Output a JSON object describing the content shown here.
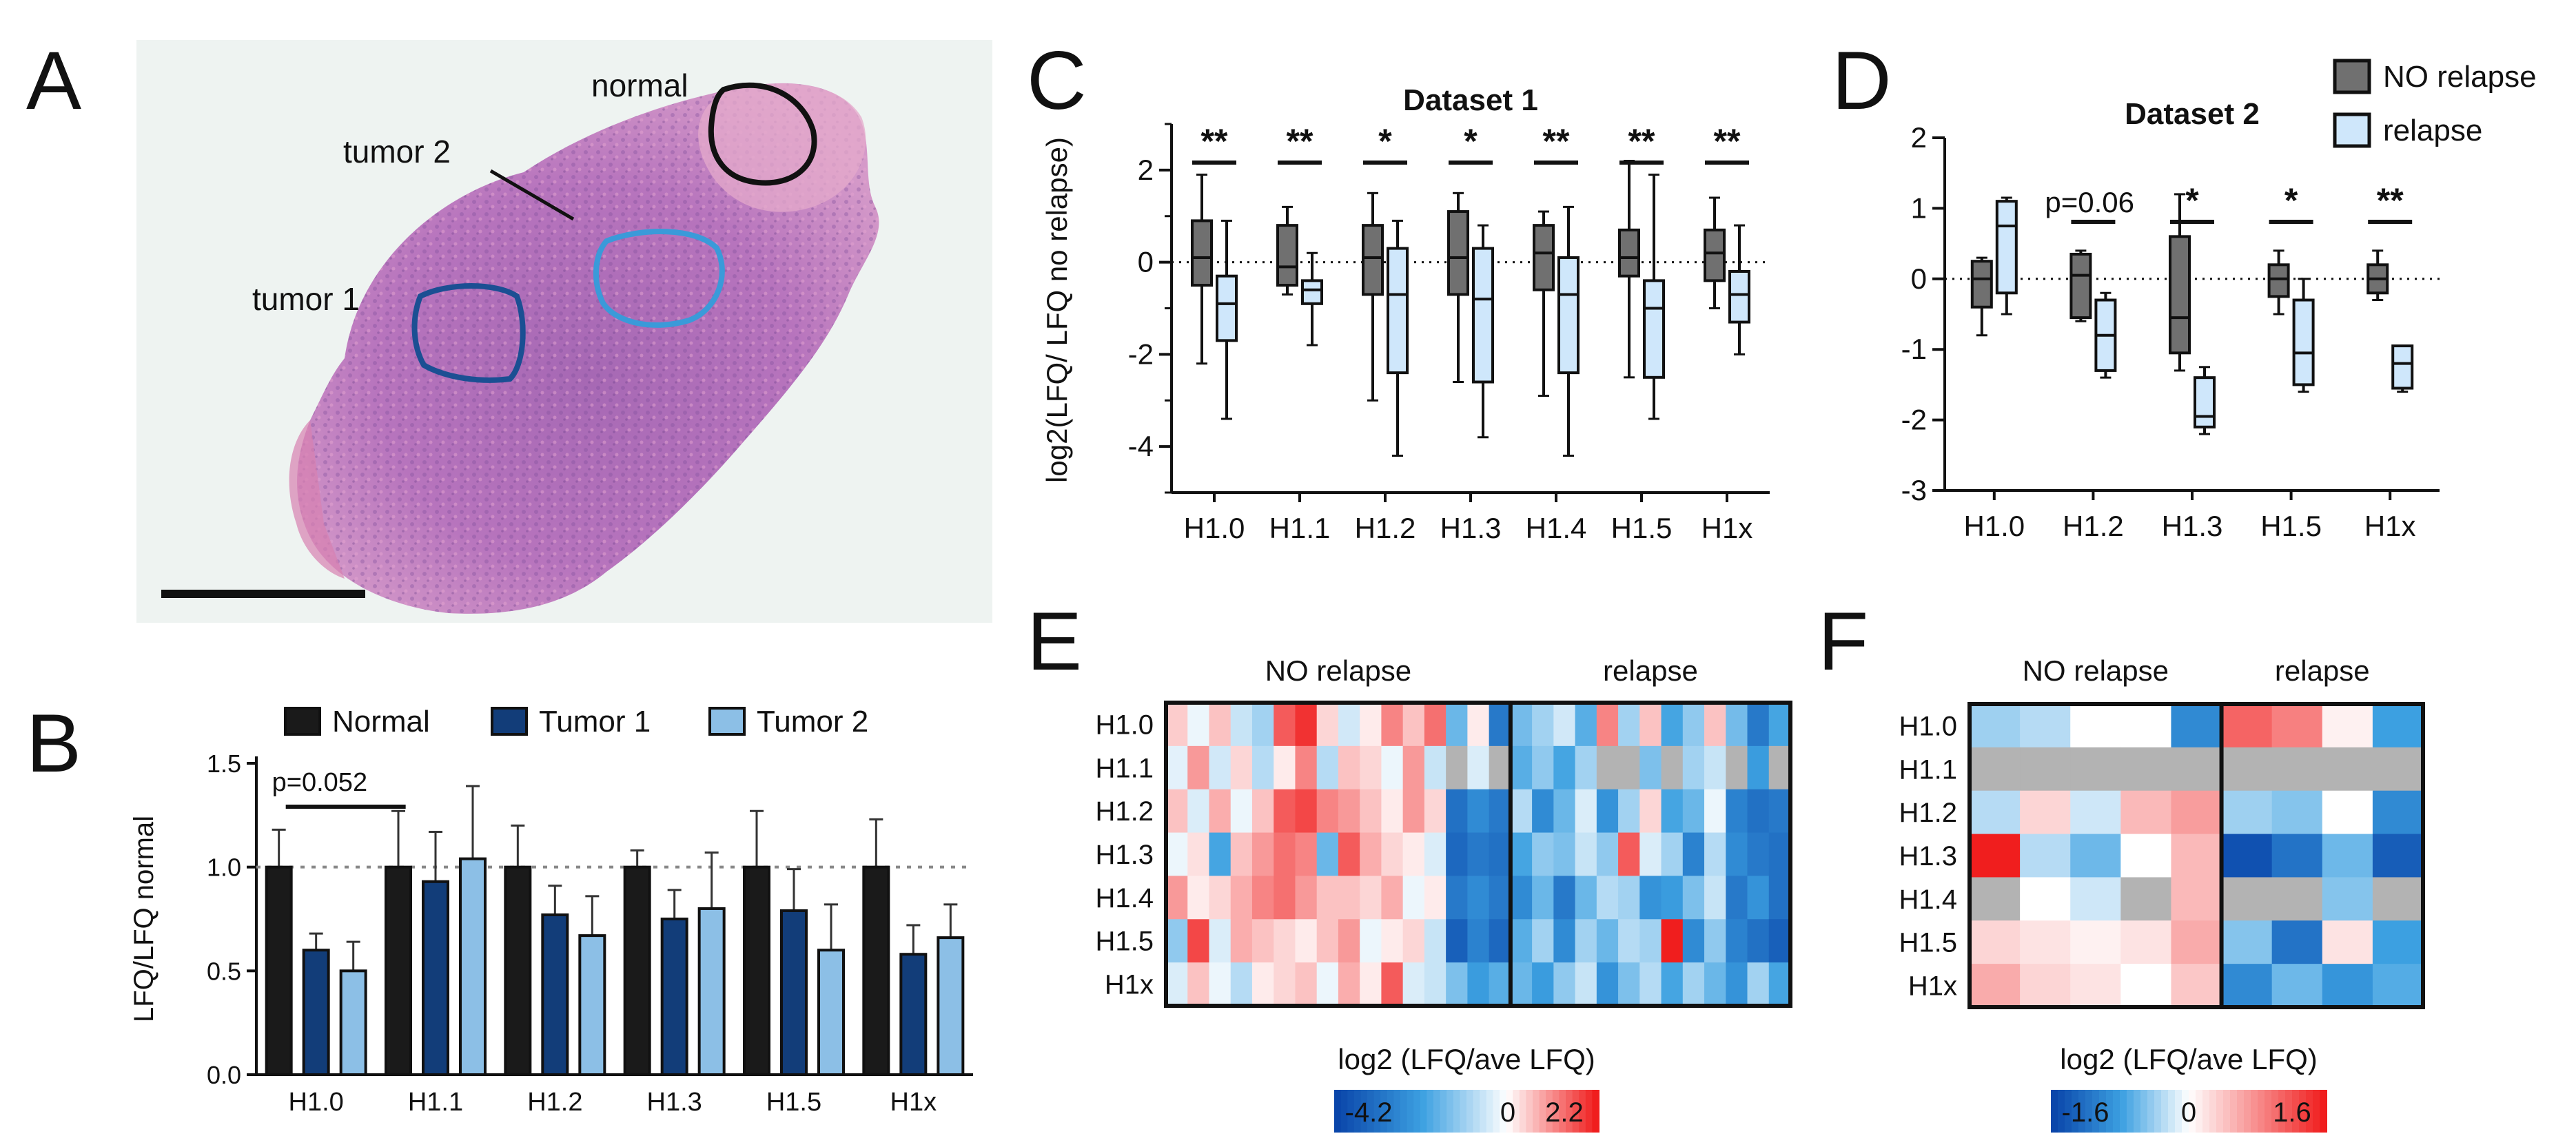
{
  "panel_labels": {
    "A": "A",
    "B": "B",
    "C": "C",
    "D": "D",
    "E": "E",
    "F": "F"
  },
  "histology": {
    "labels": {
      "normal": "normal",
      "tumor1": "tumor 1",
      "tumor2": "tumor 2"
    }
  },
  "colors": {
    "normal_bar": "#1a1a1a",
    "tumor1_bar": "#123d79",
    "tumor2_bar": "#8cbfe6",
    "no_relapse_box": "#707070",
    "relapse_box": "#cfe7fb",
    "tumor1_outline": "#1b4f93",
    "tumor2_outline": "#3a9ad9",
    "normal_outline": "#111111"
  },
  "chart_data": [
    {
      "id": "B",
      "type": "bar",
      "categories": [
        "H1.0",
        "H1.1",
        "H1.2",
        "H1.3",
        "H1.5",
        "H1x"
      ],
      "series": [
        {
          "name": "Normal",
          "values": [
            1.0,
            1.0,
            1.0,
            1.0,
            1.0,
            1.0
          ],
          "err": [
            0.18,
            0.27,
            0.2,
            0.08,
            0.27,
            0.23
          ]
        },
        {
          "name": "Tumor 1",
          "values": [
            0.6,
            0.93,
            0.77,
            0.75,
            0.79,
            0.58
          ],
          "err": [
            0.08,
            0.24,
            0.14,
            0.14,
            0.2,
            0.14
          ]
        },
        {
          "name": "Tumor 2",
          "values": [
            0.5,
            1.04,
            0.67,
            0.8,
            0.6,
            0.66
          ],
          "err": [
            0.14,
            0.35,
            0.19,
            0.27,
            0.22,
            0.16
          ]
        }
      ],
      "ylabel": "LFQ/LFQ normal",
      "ylim": [
        0,
        1.5
      ],
      "yticks": [
        "0.0",
        "0.5",
        "1.0",
        "1.5"
      ],
      "reference_line": 1.0,
      "annotation": "p=0.052",
      "legend": "top"
    },
    {
      "id": "C",
      "type": "box",
      "title": "Dataset 1",
      "categories": [
        "H1.0",
        "H1.1",
        "H1.2",
        "H1.3",
        "H1.4",
        "H1.5",
        "H1x"
      ],
      "series": [
        {
          "name": "NO relapse",
          "boxes": [
            {
              "min": -2.2,
              "q1": -0.5,
              "med": 0.1,
              "q3": 0.9,
              "max": 1.9
            },
            {
              "min": -0.7,
              "q1": -0.5,
              "med": -0.1,
              "q3": 0.8,
              "max": 1.2
            },
            {
              "min": -3.0,
              "q1": -0.7,
              "med": 0.1,
              "q3": 0.8,
              "max": 1.5
            },
            {
              "min": -2.6,
              "q1": -0.7,
              "med": 0.1,
              "q3": 1.1,
              "max": 1.5
            },
            {
              "min": -2.9,
              "q1": -0.6,
              "med": 0.2,
              "q3": 0.8,
              "max": 1.1
            },
            {
              "min": -2.5,
              "q1": -0.3,
              "med": 0.1,
              "q3": 0.7,
              "max": 2.2
            },
            {
              "min": -1.0,
              "q1": -0.4,
              "med": 0.2,
              "q3": 0.7,
              "max": 1.4
            }
          ]
        },
        {
          "name": "relapse",
          "boxes": [
            {
              "min": -3.4,
              "q1": -1.7,
              "med": -0.9,
              "q3": -0.3,
              "max": 0.9
            },
            {
              "min": -1.8,
              "q1": -0.9,
              "med": -0.6,
              "q3": -0.4,
              "max": 0.2
            },
            {
              "min": -4.2,
              "q1": -2.4,
              "med": -0.7,
              "q3": 0.3,
              "max": 0.9
            },
            {
              "min": -3.8,
              "q1": -2.6,
              "med": -0.8,
              "q3": 0.3,
              "max": 0.8
            },
            {
              "min": -4.2,
              "q1": -2.4,
              "med": -0.7,
              "q3": 0.1,
              "max": 1.2
            },
            {
              "min": -3.4,
              "q1": -2.5,
              "med": -1.0,
              "q3": -0.4,
              "max": 1.9
            },
            {
              "min": -2.0,
              "q1": -1.3,
              "med": -0.7,
              "q3": -0.2,
              "max": 0.8
            }
          ]
        }
      ],
      "ylabel": "log2(LFQ/ LFQ no relapse)",
      "ylim": [
        -5,
        3
      ],
      "yticks": [
        "-4",
        "-2",
        "0",
        "2"
      ],
      "significance": [
        "**",
        "**",
        "*",
        "*",
        "**",
        "**",
        "**"
      ]
    },
    {
      "id": "D",
      "type": "box",
      "title": "Dataset 2",
      "categories": [
        "H1.0",
        "H1.2",
        "H1.3",
        "H1.5",
        "H1x"
      ],
      "series": [
        {
          "name": "NO relapse",
          "boxes": [
            {
              "min": -0.8,
              "q1": -0.4,
              "med": 0.0,
              "q3": 0.25,
              "max": 0.3
            },
            {
              "min": -0.6,
              "q1": -0.55,
              "med": 0.05,
              "q3": 0.35,
              "max": 0.4
            },
            {
              "min": -1.3,
              "q1": -1.05,
              "med": -0.55,
              "q3": 0.6,
              "max": 1.2
            },
            {
              "min": -0.5,
              "q1": -0.25,
              "med": 0.0,
              "q3": 0.2,
              "max": 0.4
            },
            {
              "min": -0.3,
              "q1": -0.2,
              "med": 0.0,
              "q3": 0.2,
              "max": 0.4
            }
          ]
        },
        {
          "name": "relapse",
          "boxes": [
            {
              "min": -0.5,
              "q1": -0.2,
              "med": 0.75,
              "q3": 1.1,
              "max": 1.15
            },
            {
              "min": -1.4,
              "q1": -1.3,
              "med": -0.8,
              "q3": -0.3,
              "max": -0.2
            },
            {
              "min": -2.2,
              "q1": -2.1,
              "med": -1.95,
              "q3": -1.4,
              "max": -1.25
            },
            {
              "min": -1.6,
              "q1": -1.5,
              "med": -1.05,
              "q3": -0.3,
              "max": 0.0
            },
            {
              "min": -1.6,
              "q1": -1.55,
              "med": -1.2,
              "q3": -0.95,
              "max": -0.95
            }
          ]
        }
      ],
      "ylim": [
        -3,
        2
      ],
      "yticks": [
        "-3",
        "-2",
        "-1",
        "0",
        "1",
        "2"
      ],
      "significance": [
        "",
        "p=0.06",
        "*",
        "*",
        "**"
      ],
      "legend_entries": [
        "NO relapse",
        "relapse"
      ]
    },
    {
      "id": "E",
      "type": "heatmap",
      "rows": [
        "H1.0",
        "H1.1",
        "H1.2",
        "H1.3",
        "H1.4",
        "H1.5",
        "H1x"
      ],
      "groups": [
        "NO relapse",
        "relapse"
      ],
      "cols_per_group": [
        16,
        13
      ],
      "values": [
        [
          0.5,
          -0.2,
          0.6,
          -0.6,
          -1.0,
          1.6,
          2.0,
          0.4,
          -0.5,
          0.2,
          1.2,
          0.6,
          1.4,
          -1.6,
          0.2,
          -3.0,
          -1.5,
          -1.0,
          -0.5,
          -1.8,
          1.2,
          -1.0,
          0.6,
          -2.0,
          -1.2,
          0.6,
          -1.5,
          -3.0,
          -2.0
        ],
        [
          -0.3,
          1.0,
          -0.5,
          0.4,
          -0.8,
          0.2,
          1.2,
          -0.8,
          0.6,
          0.4,
          -0.2,
          1.0,
          -0.6,
          null,
          -0.4,
          null,
          -1.8,
          -1.2,
          -2.0,
          -1.0,
          null,
          null,
          -1.4,
          null,
          -1.0,
          -0.6,
          null,
          -2.2,
          null
        ],
        [
          0.6,
          -0.4,
          0.8,
          -0.2,
          0.6,
          1.6,
          1.8,
          1.2,
          1.0,
          0.6,
          0.2,
          1.0,
          0.4,
          -3.2,
          -2.6,
          -3.0,
          -0.8,
          -2.6,
          -1.6,
          -0.4,
          -2.4,
          -1.0,
          0.4,
          -2.0,
          -1.6,
          -0.2,
          -2.8,
          -3.2,
          -3.0
        ],
        [
          -0.2,
          0.3,
          -2.0,
          0.6,
          1.0,
          1.4,
          1.2,
          -1.6,
          1.6,
          0.8,
          0.4,
          0.2,
          -0.4,
          -3.4,
          -3.0,
          -3.2,
          -2.0,
          -1.2,
          -1.4,
          -0.6,
          -1.2,
          1.6,
          -0.4,
          -1.0,
          -2.8,
          -0.8,
          -2.6,
          -3.0,
          -3.2
        ],
        [
          1.0,
          0.2,
          0.4,
          0.8,
          1.2,
          1.4,
          1.0,
          0.6,
          0.6,
          0.4,
          0.8,
          -0.2,
          0.2,
          -3.0,
          -2.6,
          -3.0,
          -2.6,
          -1.6,
          -3.0,
          -1.6,
          -0.8,
          -1.0,
          -2.4,
          -2.2,
          -1.4,
          -0.6,
          -3.0,
          -2.4,
          -3.2
        ],
        [
          -1.2,
          1.8,
          -0.4,
          0.8,
          0.6,
          0.4,
          0.2,
          0.6,
          1.0,
          -0.2,
          0.2,
          0.4,
          -0.6,
          -3.6,
          -2.8,
          -3.4,
          -1.8,
          -1.0,
          -2.6,
          -1.0,
          -1.6,
          -0.8,
          -1.0,
          2.2,
          -2.6,
          -1.2,
          -2.8,
          -3.2,
          -3.6
        ],
        [
          -0.4,
          0.6,
          -0.2,
          -0.8,
          0.2,
          0.4,
          0.6,
          -0.2,
          0.8,
          0.2,
          1.6,
          -0.4,
          -0.6,
          -1.4,
          -2.2,
          -1.8,
          -1.6,
          -2.2,
          -1.2,
          -0.6,
          -2.4,
          -1.4,
          -0.8,
          -2.0,
          -1.0,
          -1.6,
          -2.4,
          -1.0,
          -2.0
        ]
      ],
      "missing_color": "#b3b3b3",
      "colorbar": {
        "label": "log2 (LFQ/ave LFQ)",
        "min_label": "-4.2",
        "mid_label": "0",
        "max_label": "2.2",
        "min": -4.2,
        "max": 2.2
      }
    },
    {
      "id": "F",
      "type": "heatmap",
      "rows": [
        "H1.0",
        "H1.1",
        "H1.2",
        "H1.3",
        "H1.4",
        "H1.5",
        "H1x"
      ],
      "groups": [
        "NO relapse",
        "relapse"
      ],
      "cols_per_group": [
        5,
        4
      ],
      "values": [
        [
          -0.4,
          -0.3,
          0.0,
          0.0,
          -1.0,
          1.1,
          0.9,
          0.1,
          -0.8
        ],
        [
          null,
          null,
          null,
          null,
          null,
          null,
          null,
          null,
          null
        ],
        [
          -0.3,
          0.3,
          -0.2,
          0.5,
          0.7,
          -0.4,
          -0.5,
          0.0,
          -1.0
        ],
        [
          1.6,
          -0.3,
          -0.6,
          0.0,
          0.5,
          -1.5,
          -1.2,
          -0.6,
          -1.4
        ],
        [
          null,
          0.0,
          -0.2,
          null,
          0.5,
          null,
          null,
          -0.5,
          null
        ],
        [
          0.3,
          0.2,
          0.1,
          0.2,
          0.6,
          -0.5,
          -1.2,
          0.2,
          -0.8
        ],
        [
          0.6,
          0.3,
          0.2,
          0.0,
          0.4,
          -1.0,
          -0.6,
          -0.9,
          -0.7
        ]
      ],
      "missing_color": "#b3b3b3",
      "colorbar": {
        "label": "log2 (LFQ/ave LFQ)",
        "min_label": "-1.6",
        "mid_label": "0",
        "max_label": "1.6",
        "min": -1.6,
        "max": 1.6
      }
    }
  ]
}
